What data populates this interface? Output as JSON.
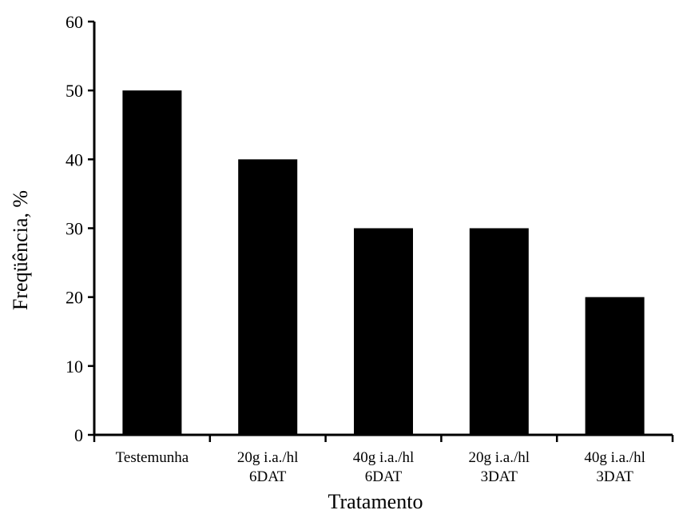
{
  "chart_data": {
    "type": "bar",
    "categories": [
      [
        "Testemunha"
      ],
      [
        "20g i.a./hl",
        "6DAT"
      ],
      [
        "40g i.a./hl",
        "6DAT"
      ],
      [
        "20g i.a./hl",
        "3DAT"
      ],
      [
        "40g i.a./hl",
        "3DAT"
      ]
    ],
    "values": [
      50,
      40,
      30,
      30,
      20
    ],
    "xlabel": "Tratamento",
    "ylabel": "Freqüência, %",
    "ylim": [
      0,
      60
    ],
    "yticks": [
      0,
      10,
      20,
      30,
      40,
      50,
      60
    ],
    "grid": false,
    "bar_color": "#000000"
  }
}
